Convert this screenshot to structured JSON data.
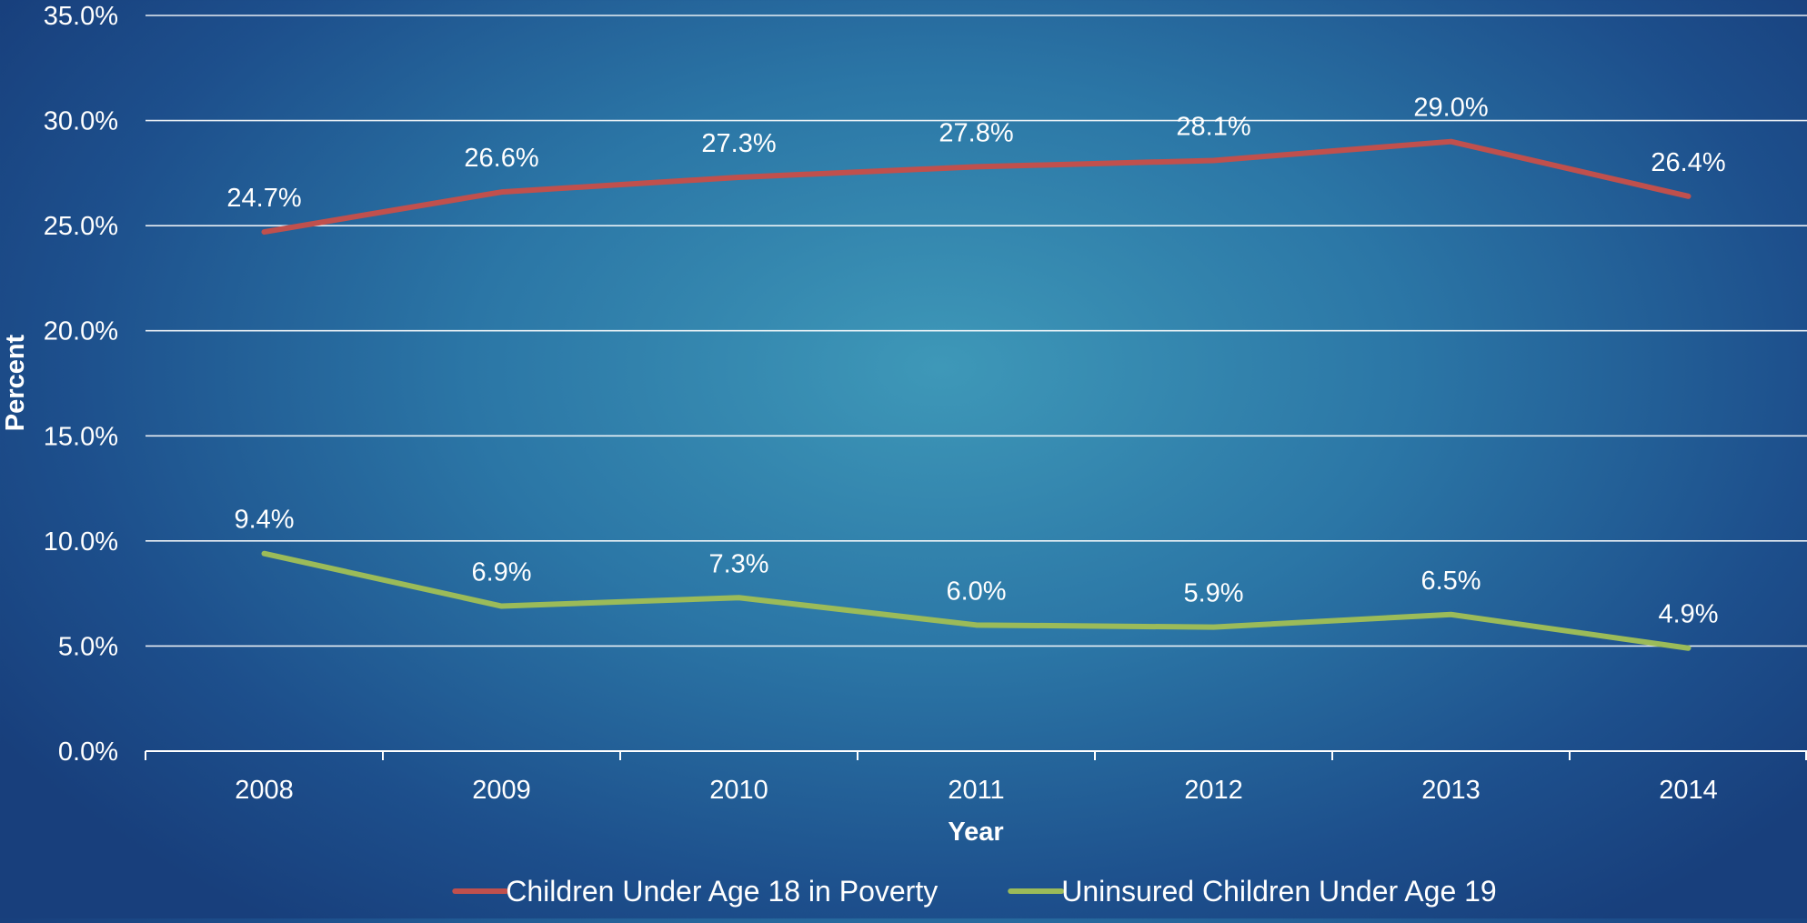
{
  "chart_data": {
    "type": "line",
    "title": "",
    "xlabel": "Year",
    "ylabel": "Percent",
    "categories": [
      "2008",
      "2009",
      "2010",
      "2011",
      "2012",
      "2013",
      "2014"
    ],
    "ylim": [
      0,
      35
    ],
    "ytick_values": [
      0,
      5,
      10,
      15,
      20,
      25,
      30,
      35
    ],
    "ytick_labels": [
      "0.0%",
      "5.0%",
      "10.0%",
      "15.0%",
      "20.0%",
      "25.0%",
      "30.0%",
      "35.0%"
    ],
    "grid": true,
    "legend_position": "bottom",
    "series": [
      {
        "name": "Children Under Age 18 in Poverty",
        "color": "#c0504d",
        "values": [
          24.7,
          26.6,
          27.3,
          27.8,
          28.1,
          29.0,
          26.4
        ],
        "labels": [
          "24.7%",
          "26.6%",
          "27.3%",
          "27.8%",
          "28.1%",
          "29.0%",
          "26.4%"
        ]
      },
      {
        "name": "Uninsured Children Under Age 19",
        "color": "#9bbb59",
        "values": [
          9.4,
          6.9,
          7.3,
          6.0,
          5.9,
          6.5,
          4.9
        ],
        "labels": [
          "9.4%",
          "6.9%",
          "7.3%",
          "6.0%",
          "5.9%",
          "6.5%",
          "4.9%"
        ]
      }
    ]
  }
}
